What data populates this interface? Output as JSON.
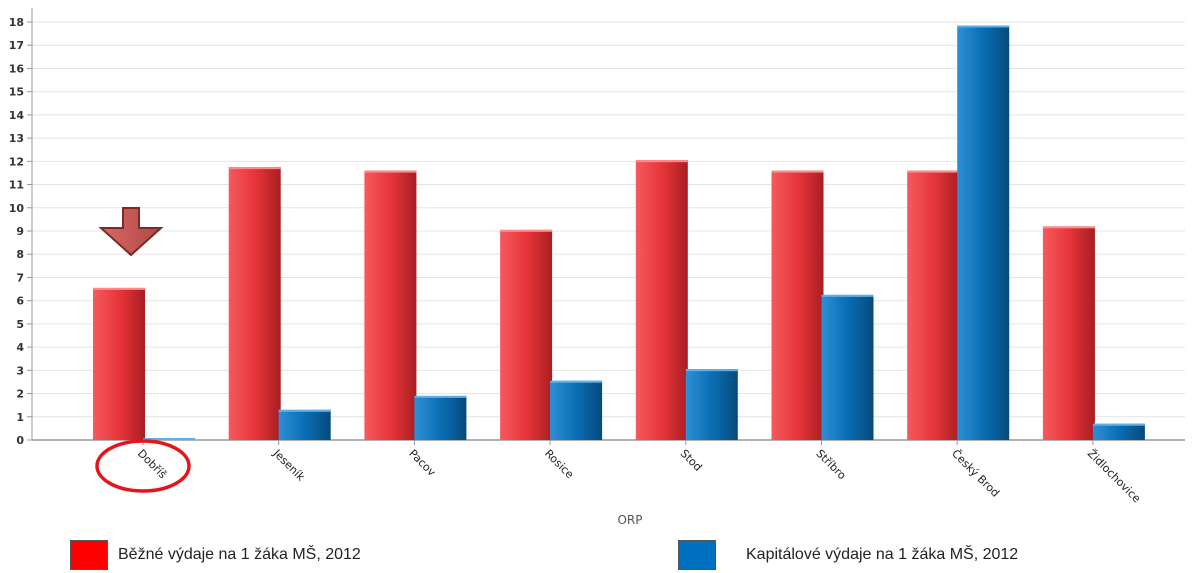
{
  "chart_data": {
    "type": "bar",
    "categories": [
      "Dobříš",
      "Jeseník",
      "Pacov",
      "Rosice",
      "Stod",
      "Stříbro",
      "Český Brod",
      "Židlochovice"
    ],
    "series": [
      {
        "name": "Běžné výdaje na 1 žáka MŠ, 2012",
        "color": "#e8353a",
        "values": [
          6.55,
          11.75,
          11.6,
          9.05,
          12.05,
          11.6,
          11.6,
          9.2
        ]
      },
      {
        "name": "Kapitálové výdaje na 1 žáka MŠ, 2012",
        "color": "#0a6eb4",
        "values": [
          0.08,
          1.3,
          1.9,
          2.55,
          3.05,
          6.25,
          17.85,
          0.7
        ]
      }
    ],
    "xlabel": "ORP",
    "ylabel": "",
    "ylim": [
      0,
      18
    ],
    "yticks": [
      "0",
      "1",
      "2",
      "3",
      "4",
      "5",
      "6",
      "7",
      "8",
      "9",
      "10",
      "11",
      "12",
      "13",
      "14",
      "15",
      "16",
      "17",
      "18"
    ],
    "grid": true,
    "legend_position": "bottom",
    "annotations": [
      {
        "type": "arrow-down",
        "category": "Dobříš",
        "color": "#c0504d"
      },
      {
        "type": "circle",
        "category": "Dobříš",
        "color": "#e8141a"
      }
    ]
  }
}
